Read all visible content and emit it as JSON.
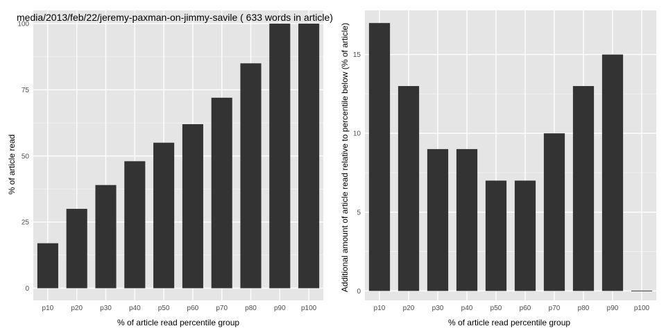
{
  "colors": {
    "panel_bg": "#e5e5e5",
    "grid_major": "#ffffff",
    "grid_minor": "#f2f2f2",
    "bar_fill": "#333333",
    "tick_text": "#4d4d4d",
    "text": "#000000"
  },
  "chart_data": [
    {
      "type": "bar",
      "title": "media/2013/feb/22/jeremy-paxman-on-jimmy-savile ( 633 words in article)",
      "xlabel": "% of article read percentile group",
      "ylabel": "% of article read",
      "categories": [
        "p10",
        "p20",
        "p30",
        "p40",
        "p50",
        "p60",
        "p70",
        "p80",
        "p90",
        "p100"
      ],
      "values": [
        17,
        30,
        39,
        48,
        55,
        62,
        72,
        85,
        100,
        100
      ],
      "ylim": [
        -4.6,
        105
      ],
      "yticks": [
        0,
        25,
        50,
        75,
        100
      ],
      "grid": true
    },
    {
      "type": "bar",
      "title": "",
      "xlabel": "% of article read percentile group",
      "ylabel": "Additional amount of article read relative to percentile below (% of article)",
      "categories": [
        "p10",
        "p20",
        "p30",
        "p40",
        "p50",
        "p60",
        "p70",
        "p80",
        "p90",
        "p100"
      ],
      "values": [
        17,
        13,
        9,
        9,
        7,
        7,
        10,
        13,
        15,
        0
      ],
      "ylim": [
        -0.6,
        17.8
      ],
      "yticks": [
        0,
        5,
        10,
        15
      ],
      "grid": true
    }
  ]
}
